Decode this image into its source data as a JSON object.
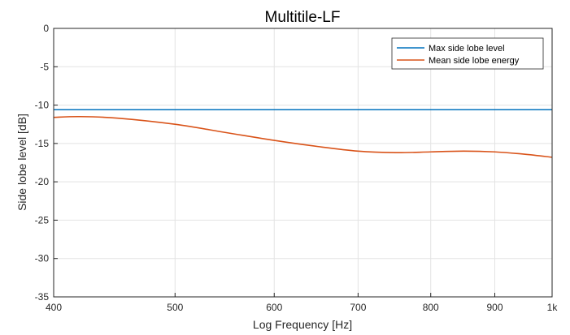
{
  "chart_data": {
    "type": "line",
    "title": "Multitile-LF",
    "xlabel": "Log Frequency [Hz]",
    "ylabel": "Side lobe level [dB]",
    "xscale": "log",
    "xlim": [
      400,
      1000
    ],
    "ylim": [
      -35,
      0
    ],
    "xticks": [
      400,
      500,
      600,
      700,
      800,
      900,
      1000
    ],
    "xtick_labels": [
      "400",
      "500",
      "600",
      "700",
      "800",
      "900",
      "1k"
    ],
    "yticks": [
      0,
      -5,
      -10,
      -15,
      -20,
      -25,
      -30,
      -35
    ],
    "ytick_labels": [
      "0",
      "-5",
      "-10",
      "-15",
      "-20",
      "-25",
      "-30",
      "-35"
    ],
    "grid": true,
    "legend_position": "top-right",
    "series": [
      {
        "name": "Max side lobe level",
        "color": "#0072bd",
        "x": [
          400,
          1000
        ],
        "y": [
          -10.6,
          -10.6
        ]
      },
      {
        "name": "Mean side lobe energy",
        "color": "#d95319",
        "x": [
          400,
          420,
          450,
          500,
          550,
          600,
          650,
          700,
          750,
          800,
          850,
          900,
          950,
          1000
        ],
        "y": [
          -11.6,
          -11.5,
          -11.7,
          -12.5,
          -13.6,
          -14.6,
          -15.4,
          -16.0,
          -16.2,
          -16.1,
          -16.0,
          -16.1,
          -16.4,
          -16.8
        ]
      }
    ]
  }
}
